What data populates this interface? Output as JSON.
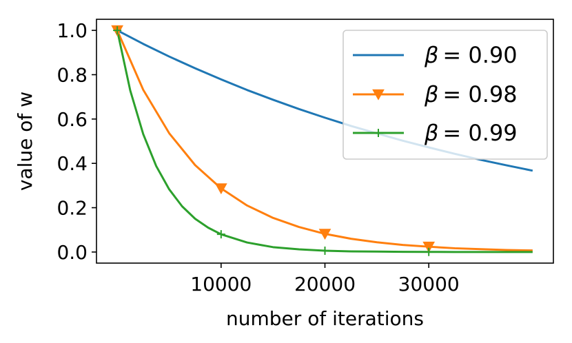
{
  "chart_data": {
    "type": "line",
    "xlabel": "number of iterations",
    "ylabel": "value of w",
    "xlim": [
      -2000,
      42000
    ],
    "ylim": [
      -0.05,
      1.05
    ],
    "xticks": [
      10000,
      20000,
      30000
    ],
    "xtick_labels": [
      "10000",
      "20000",
      "30000"
    ],
    "yticks": [
      0.0,
      0.2,
      0.4,
      0.6,
      0.8,
      1.0
    ],
    "ytick_labels": [
      "0.0",
      "0.2",
      "0.4",
      "0.6",
      "0.8",
      "1.0"
    ],
    "grid": false,
    "legend_position": "top-right",
    "series": [
      {
        "name": "β = 0.90",
        "legend_beta": "β",
        "legend_value": "= 0.90",
        "color": "#1f77b4",
        "marker": "none",
        "x": [
          0,
          2500,
          5000,
          7500,
          10000,
          12500,
          15000,
          17500,
          20000,
          22500,
          25000,
          27500,
          30000,
          32500,
          35000,
          37500,
          40000
        ],
        "y": [
          1.0,
          0.939,
          0.882,
          0.829,
          0.779,
          0.731,
          0.687,
          0.645,
          0.606,
          0.569,
          0.535,
          0.502,
          0.472,
          0.443,
          0.416,
          0.391,
          0.367
        ]
      },
      {
        "name": "β = 0.98",
        "legend_beta": "β",
        "legend_value": "= 0.98",
        "color": "#ff7f0e",
        "marker": "triangle-down",
        "marker_x": [
          0,
          10000,
          20000,
          30000
        ],
        "x": [
          0,
          2500,
          5000,
          7500,
          10000,
          12500,
          15000,
          17500,
          20000,
          22500,
          25000,
          27500,
          30000,
          32500,
          35000,
          37500,
          40000
        ],
        "y": [
          1.0,
          0.732,
          0.536,
          0.392,
          0.287,
          0.21,
          0.154,
          0.113,
          0.082,
          0.06,
          0.044,
          0.032,
          0.024,
          0.017,
          0.013,
          0.009,
          0.007
        ]
      },
      {
        "name": "β = 0.99",
        "legend_beta": "β",
        "legend_value": "= 0.99",
        "color": "#2ca02c",
        "marker": "plus",
        "marker_x": [
          0,
          10000,
          20000,
          30000
        ],
        "x": [
          0,
          1250,
          2500,
          3750,
          5000,
          6250,
          7500,
          8750,
          10000,
          12500,
          15000,
          17500,
          20000,
          22500,
          25000,
          27500,
          30000,
          32500,
          35000,
          37500,
          40000
        ],
        "y": [
          1.0,
          0.729,
          0.532,
          0.388,
          0.283,
          0.206,
          0.15,
          0.11,
          0.08,
          0.043,
          0.022,
          0.012,
          0.006,
          0.003,
          0.002,
          0.001,
          0.0005,
          0.0003,
          0.0001,
          0.0001,
          0.0
        ]
      }
    ]
  }
}
